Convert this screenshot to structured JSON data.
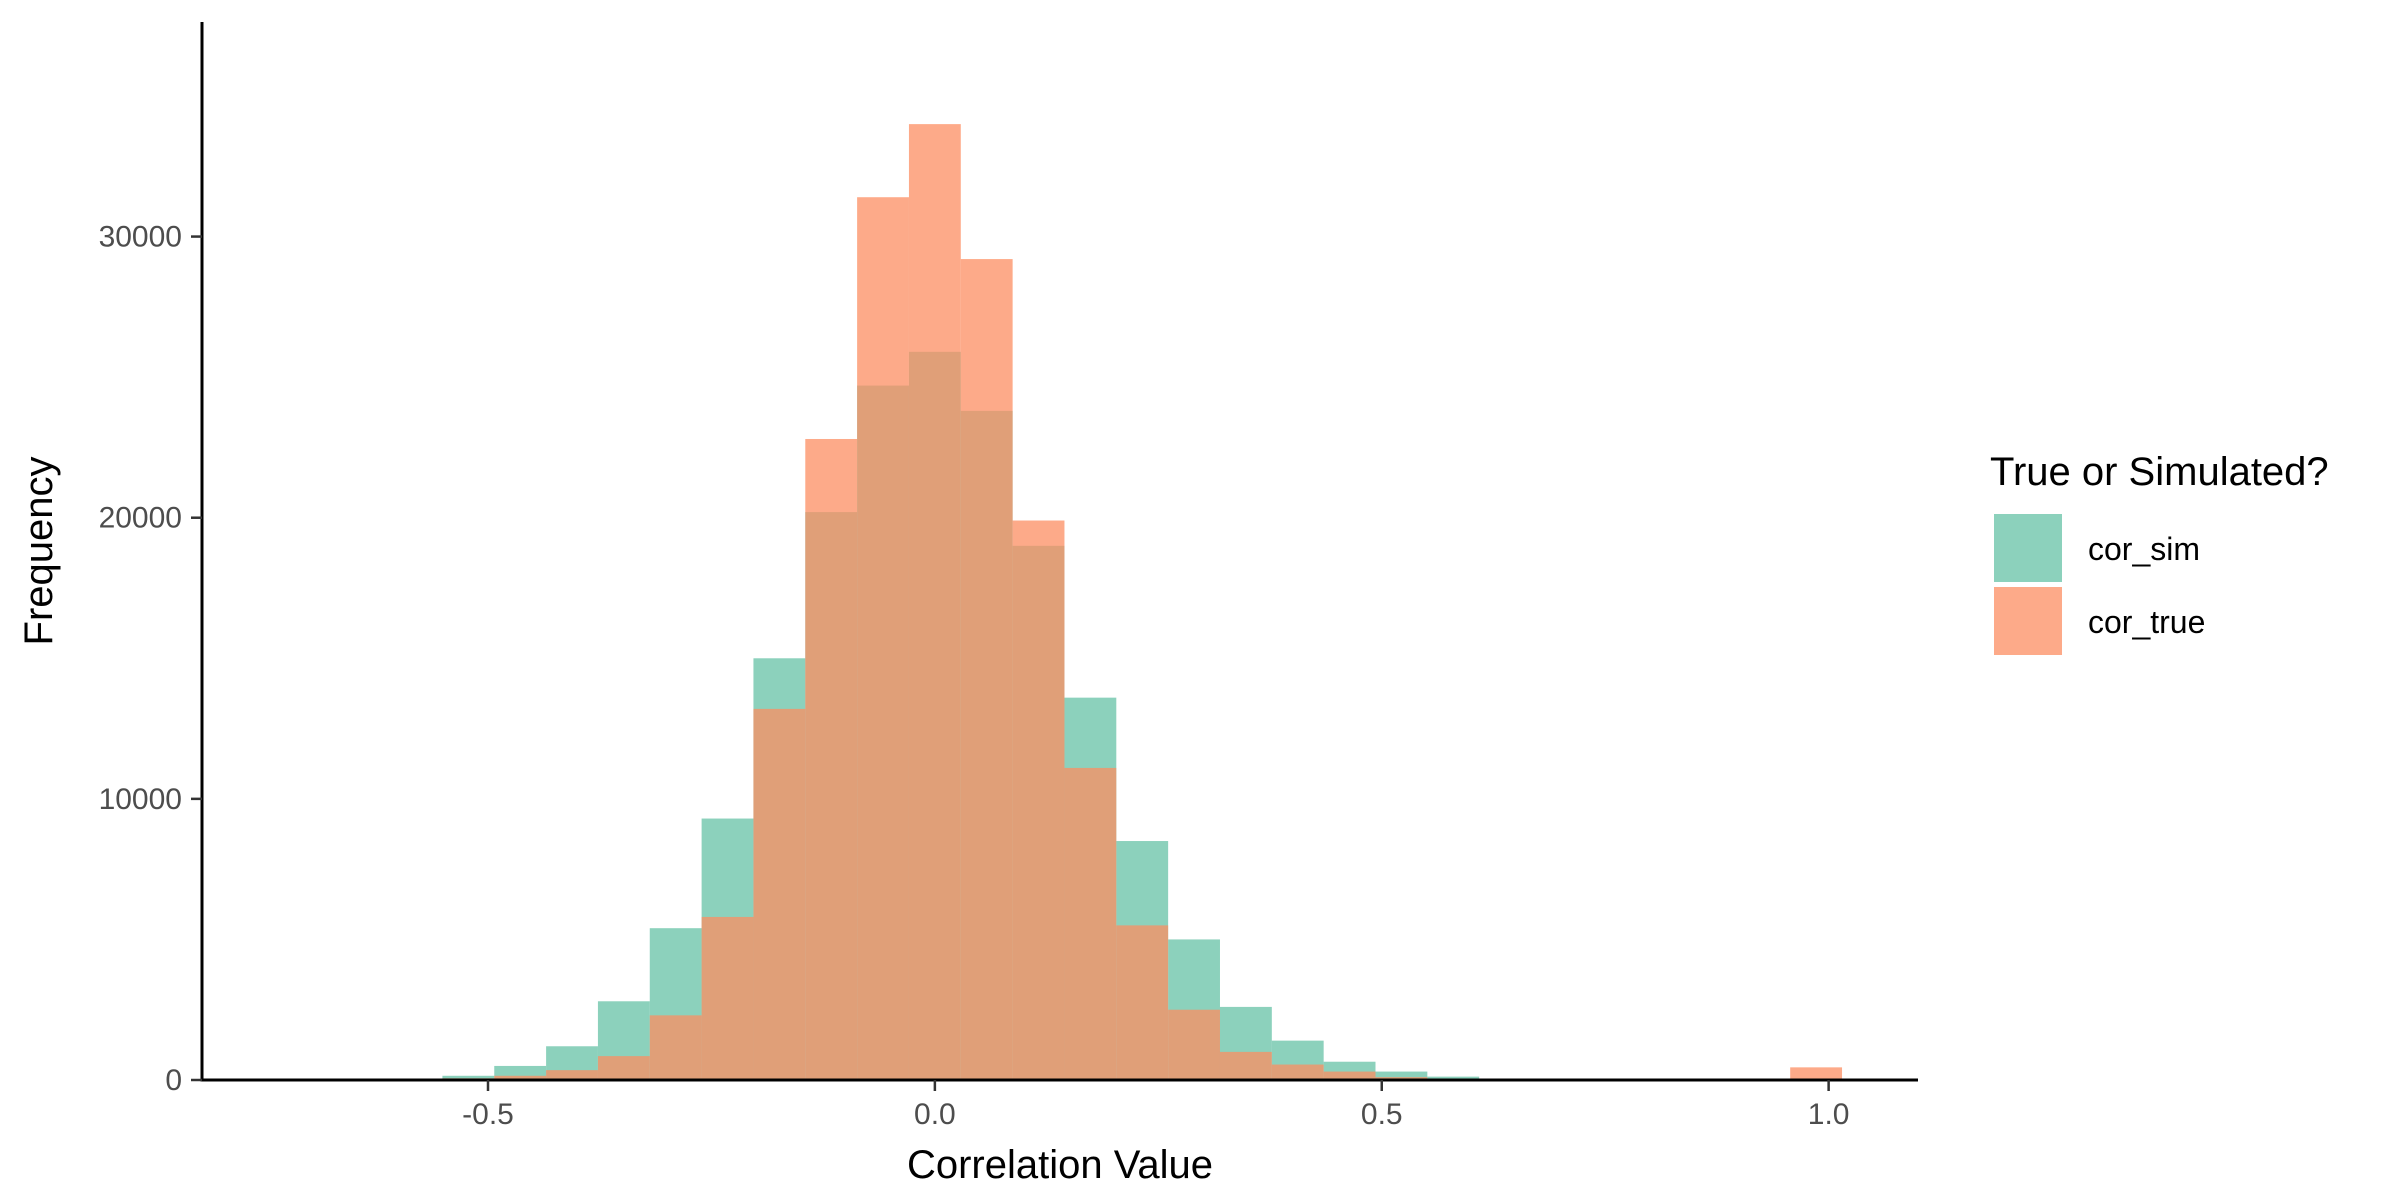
{
  "chart_data": {
    "type": "bar",
    "subtype": "overlaid-histogram",
    "xlabel": "Correlation Value",
    "ylabel": "Frequency",
    "xlim": [
      -0.82,
      1.1
    ],
    "ylim": [
      0,
      35000
    ],
    "x_ticks": [
      -0.5,
      0.0,
      0.5,
      1.0
    ],
    "x_tick_labels": [
      "-0.5",
      "0.0",
      "0.5",
      "1.0"
    ],
    "y_ticks": [
      0,
      10000,
      20000,
      30000
    ],
    "y_tick_labels": [
      "0",
      "10000",
      "20000",
      "30000"
    ],
    "grid": false,
    "bin_width": 0.058,
    "bin_centers": [
      -0.522,
      -0.464,
      -0.406,
      -0.348,
      -0.29,
      -0.232,
      -0.174,
      -0.116,
      -0.058,
      0.0,
      0.058,
      0.116,
      0.174,
      0.232,
      0.29,
      0.348,
      0.406,
      0.464,
      0.522,
      0.58,
      0.638,
      0.986
    ],
    "legend": {
      "title": "True or Simulated?",
      "position": "right"
    },
    "series": [
      {
        "name": "cor_sim",
        "color": "#66c2a5",
        "opacity": 0.75,
        "values": [
          150,
          500,
          1200,
          2800,
          5400,
          9300,
          15000,
          20200,
          24700,
          25900,
          23800,
          19000,
          13600,
          8500,
          5000,
          2600,
          1400,
          650,
          300,
          120,
          40,
          0
        ]
      },
      {
        "name": "cor_true",
        "color": "#fc8d62",
        "opacity": 0.75,
        "values": [
          60,
          150,
          350,
          850,
          2300,
          5800,
          13200,
          22800,
          31400,
          34000,
          29200,
          19900,
          11100,
          5500,
          2500,
          1000,
          550,
          300,
          100,
          40,
          10,
          450
        ]
      }
    ]
  }
}
